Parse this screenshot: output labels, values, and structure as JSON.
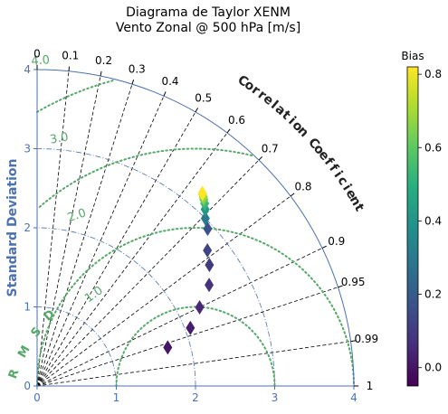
{
  "chart_data": {
    "type": "scatter",
    "subtype": "taylor-diagram",
    "title_lines": [
      "Diagrama de Taylor XENM",
      "Vento Zonal @ 500 hPa [m/s]"
    ],
    "ylabel": "Standard Deviation",
    "correlation_label": "Correlation Coefficient",
    "rms_label": "RMSD",
    "std_ticks": [
      0,
      1,
      2,
      3,
      4
    ],
    "std_tick_labels": [
      "0",
      "1",
      "2",
      "3",
      "4"
    ],
    "std_range": [
      0,
      4
    ],
    "reference_std": 2.0,
    "correlation_ticks": [
      0,
      0.1,
      0.2,
      0.3,
      0.4,
      0.5,
      0.6,
      0.7,
      0.8,
      0.9,
      0.95,
      0.99,
      1
    ],
    "correlation_tick_labels": [
      "0",
      "0.1",
      "0.2",
      "0.3",
      "0.4",
      "0.5",
      "0.6",
      "0.7",
      "0.8",
      "0.9",
      "0.95",
      "0.99",
      "1"
    ],
    "rms_contours": [
      1.0,
      2.0,
      3.0,
      4.0
    ],
    "rms_contour_labels": [
      "1.0",
      "2.0",
      "3.0",
      "4.0"
    ],
    "grid": true,
    "colorbar": {
      "title": "Bias",
      "range": [
        -0.05,
        0.82
      ],
      "ticks": [
        0.0,
        0.2,
        0.4,
        0.6,
        0.8
      ],
      "tick_labels": [
        "0.0",
        "0.2",
        "0.4",
        "0.6",
        "0.8"
      ],
      "colormap": "viridis"
    },
    "points": [
      {
        "std": 1.72,
        "corr": 0.959,
        "bias": 0.0
      },
      {
        "std": 2.07,
        "corr": 0.935,
        "bias": 0.02
      },
      {
        "std": 2.28,
        "corr": 0.9,
        "bias": 0.05
      },
      {
        "std": 2.52,
        "corr": 0.862,
        "bias": 0.07
      },
      {
        "std": 2.66,
        "corr": 0.818,
        "bias": 0.1
      },
      {
        "std": 2.75,
        "corr": 0.782,
        "bias": 0.13
      },
      {
        "std": 2.93,
        "corr": 0.735,
        "bias": 0.17
      },
      {
        "std": 3.0,
        "corr": 0.708,
        "bias": 0.3
      },
      {
        "std": 3.08,
        "corr": 0.689,
        "bias": 0.42
      },
      {
        "std": 3.13,
        "corr": 0.676,
        "bias": 0.52
      },
      {
        "std": 3.16,
        "corr": 0.666,
        "bias": 0.6
      },
      {
        "std": 3.18,
        "corr": 0.66,
        "bias": 0.68
      },
      {
        "std": 3.2,
        "corr": 0.653,
        "bias": 0.75
      },
      {
        "std": 3.21,
        "corr": 0.65,
        "bias": 0.82
      }
    ],
    "colors": {
      "std_axis": "#4c72b0",
      "rms": "#55a868",
      "grid": "#000000",
      "ref_arc": "#4c72b0"
    }
  }
}
